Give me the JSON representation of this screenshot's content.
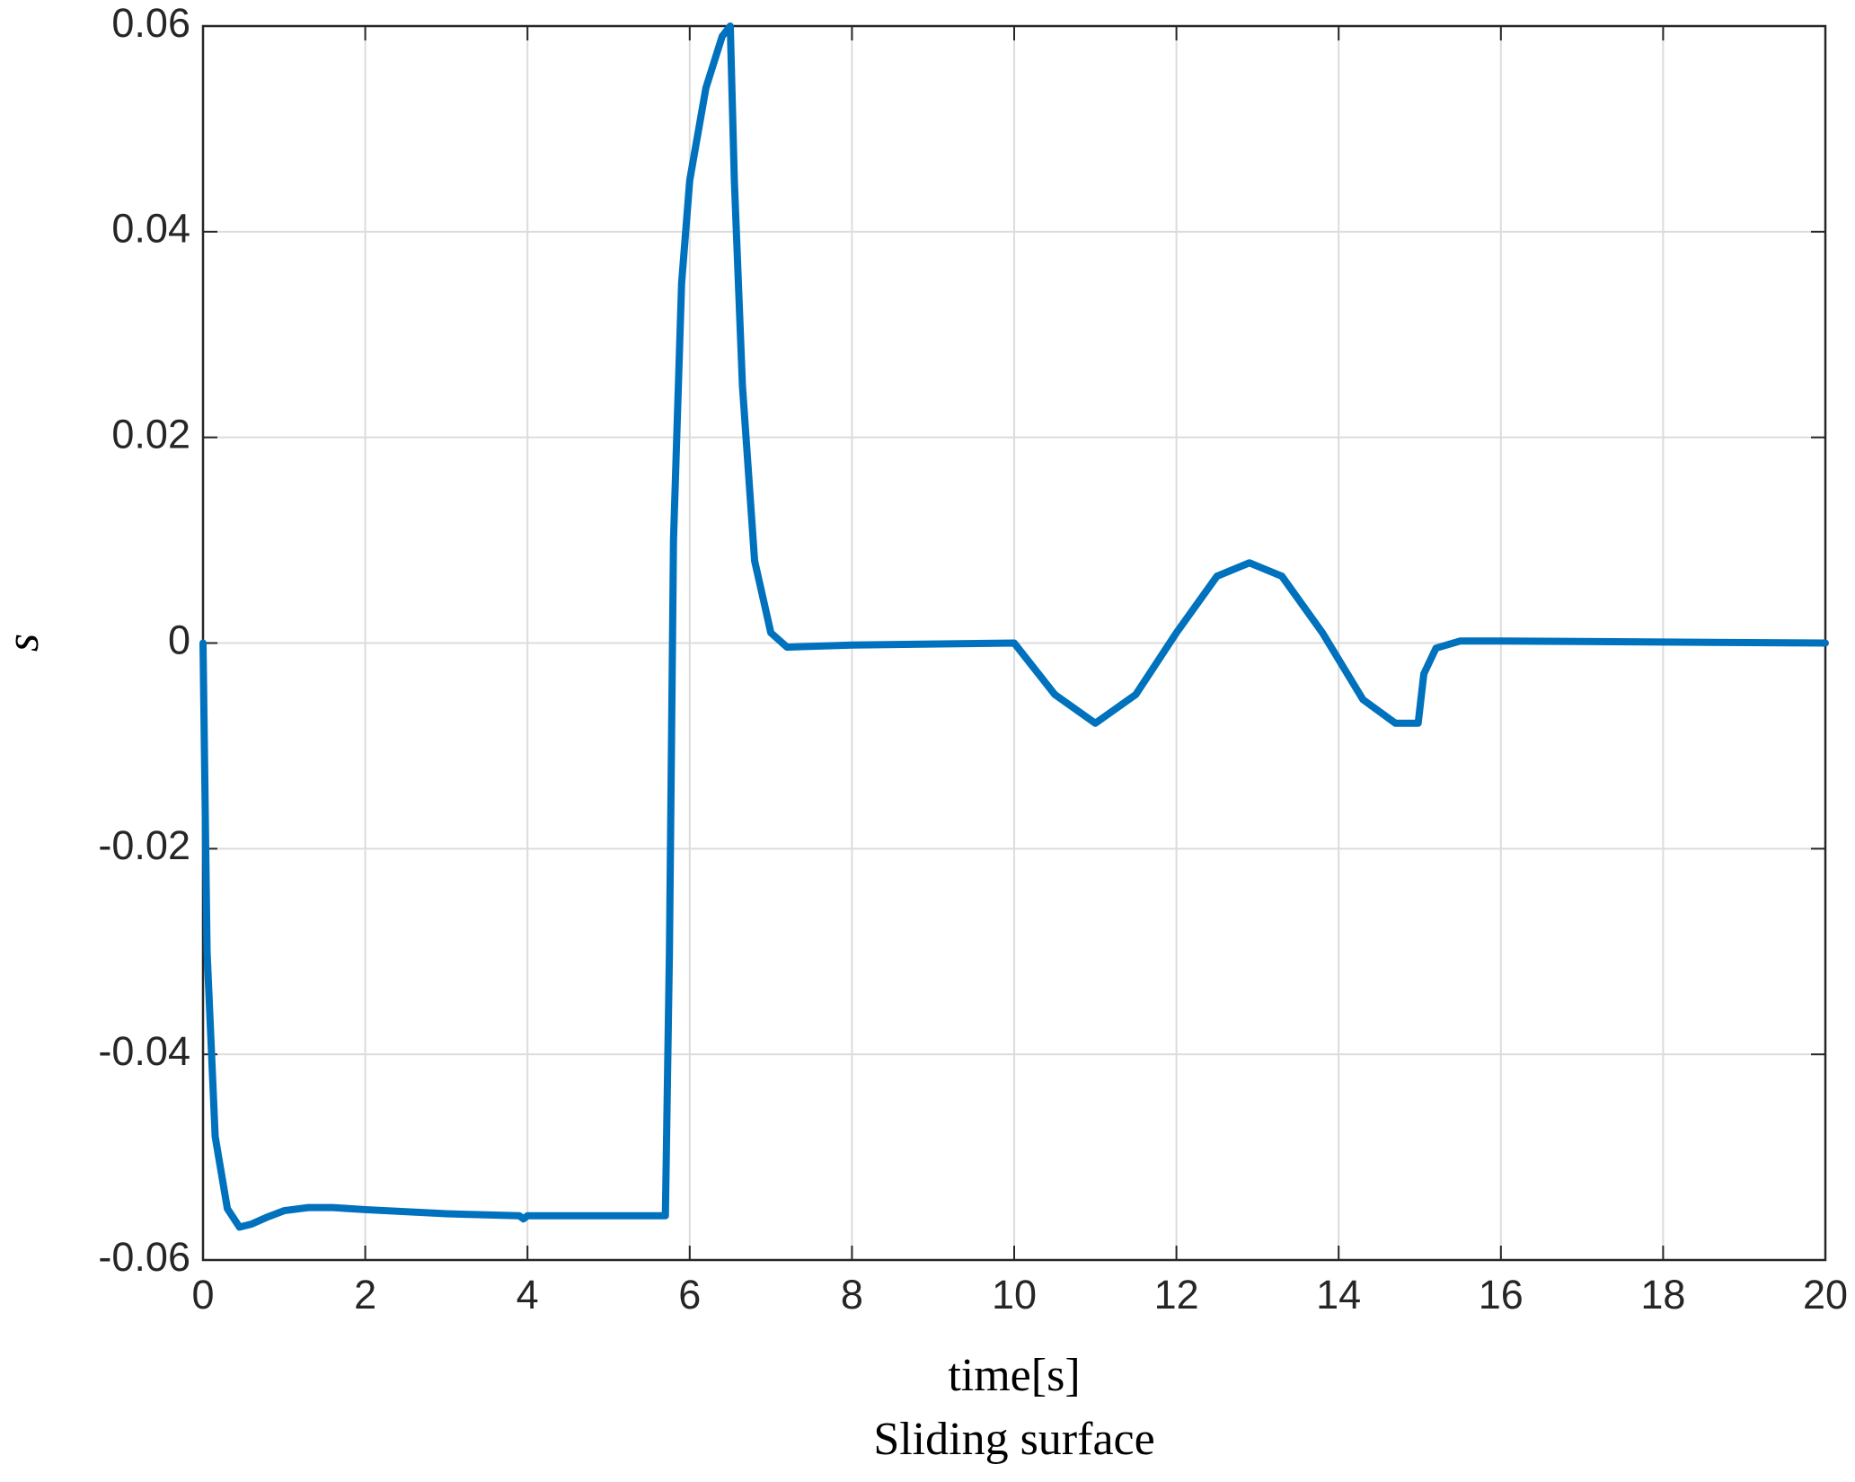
{
  "chart_data": {
    "type": "line",
    "title": "Sliding surface",
    "xlabel": "time[s]",
    "ylabel": "s",
    "color": "#0072bd",
    "grid": true,
    "x": [
      0,
      0.05,
      0.15,
      0.3,
      0.45,
      0.6,
      0.8,
      1.0,
      1.3,
      1.6,
      2.0,
      3.0,
      3.9,
      3.95,
      4.0,
      5.0,
      5.7,
      5.75,
      5.8,
      5.9,
      6.0,
      6.2,
      6.4,
      6.5,
      6.55,
      6.65,
      6.8,
      7.0,
      7.2,
      8,
      10,
      10.5,
      11,
      11.5,
      12,
      12.5,
      12.9,
      13.3,
      13.8,
      14.3,
      14.7,
      14.98,
      15.05,
      15.2,
      15.5,
      16,
      20
    ],
    "values": [
      0,
      -0.03,
      -0.048,
      -0.055,
      -0.0568,
      -0.0565,
      -0.0558,
      -0.0552,
      -0.0549,
      -0.0549,
      -0.0551,
      -0.0555,
      -0.0557,
      -0.056,
      -0.0557,
      -0.0557,
      -0.0557,
      -0.03,
      0.01,
      0.035,
      0.045,
      0.054,
      0.059,
      0.06,
      0.045,
      0.025,
      0.008,
      0.001,
      -0.0004,
      -0.0002,
      0,
      -0.005,
      -0.0078,
      -0.005,
      0.001,
      0.0065,
      0.0078,
      0.0065,
      0.001,
      -0.0055,
      -0.0078,
      -0.0078,
      -0.003,
      -0.0005,
      0.0002,
      0.0002,
      0
    ],
    "xlim": [
      0,
      20
    ],
    "xticks": [
      0,
      2,
      4,
      6,
      8,
      10,
      12,
      14,
      16,
      18,
      20
    ],
    "ylim": [
      -0.06,
      0.06
    ],
    "yticks": [
      -0.06,
      -0.04,
      -0.02,
      0,
      0.02,
      0.04,
      0.06
    ]
  }
}
